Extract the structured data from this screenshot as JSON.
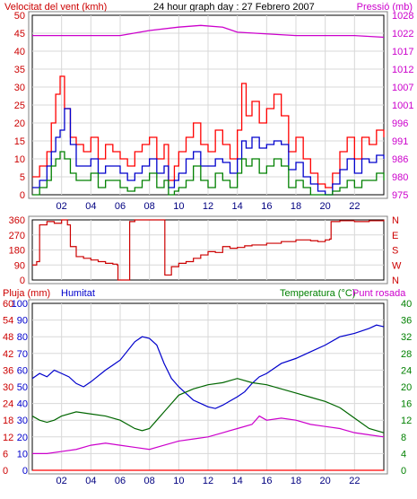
{
  "chart_data": [
    {
      "type": "line",
      "title": "24 hour graph day : 27 Febrero 2007",
      "ylabel": "Velocitat del vent (kmh)",
      "y2label": "Pressió (mb)",
      "ylim": [
        0,
        50
      ],
      "y2lim": [
        975,
        1028
      ],
      "x_ticks": [
        "02",
        "04",
        "06",
        "08",
        "10",
        "12",
        "14",
        "16",
        "18",
        "20",
        "22"
      ],
      "y_ticks": [
        "0",
        "5",
        "10",
        "15",
        "20",
        "25",
        "30",
        "35",
        "40",
        "45",
        "50"
      ],
      "y2_ticks": [
        "975",
        "980",
        "986",
        "991",
        "996",
        "1001",
        "1007",
        "1012",
        "1017",
        "1022",
        "1028"
      ],
      "grid": true,
      "series": [
        {
          "axis": "right",
          "color": "#cc00cc",
          "x": [
            0,
            2,
            4,
            6,
            8,
            10,
            11.5,
            13,
            14,
            16,
            18,
            20,
            22,
            24
          ],
          "values": [
            1022,
            1022,
            1022,
            1022,
            1023.5,
            1024.5,
            1025,
            1024.5,
            1023,
            1022.5,
            1022,
            1022,
            1022,
            1021.5
          ]
        },
        {
          "axis": "left",
          "color": "#ff0000",
          "x": [
            0,
            0.5,
            1,
            1.3,
            1.6,
            1.9,
            2.2,
            2.6,
            3,
            3.5,
            4,
            4.5,
            5,
            5.5,
            6,
            6.5,
            7,
            7.5,
            8,
            8.5,
            9,
            9.3,
            9.7,
            10,
            10.5,
            11,
            11.5,
            12,
            12.5,
            13,
            13.5,
            14,
            14.3,
            14.6,
            15,
            15.5,
            16,
            16.5,
            17,
            17.5,
            18,
            18.5,
            19,
            19.5,
            20,
            20.5,
            21,
            21.5,
            22,
            22.5,
            23,
            23.5,
            24
          ],
          "values": [
            5,
            8,
            12,
            20,
            28,
            33,
            24,
            16,
            14,
            12,
            16,
            10,
            14,
            12,
            10,
            8,
            12,
            14,
            16,
            10,
            14,
            4,
            8,
            12,
            16,
            20,
            14,
            12,
            18,
            14,
            10,
            18,
            31,
            22,
            26,
            20,
            24,
            28,
            22,
            12,
            16,
            10,
            6,
            3,
            2,
            6,
            12,
            16,
            10,
            16,
            14,
            18,
            16
          ]
        },
        {
          "axis": "left",
          "color": "#0000cc",
          "x": [
            0,
            0.5,
            1,
            1.3,
            1.6,
            1.9,
            2.2,
            2.6,
            3,
            3.5,
            4,
            4.5,
            5,
            5.5,
            6,
            6.5,
            7,
            7.5,
            8,
            8.5,
            9,
            9.3,
            9.7,
            10,
            10.5,
            11,
            11.5,
            12,
            12.5,
            13,
            13.5,
            14,
            14.3,
            14.6,
            15,
            15.5,
            16,
            16.5,
            17,
            17.5,
            18,
            18.5,
            19,
            19.5,
            20,
            20.5,
            21,
            21.5,
            22,
            22.5,
            23,
            23.5,
            24
          ],
          "values": [
            2,
            4,
            8,
            12,
            16,
            18,
            24,
            14,
            8,
            8,
            10,
            6,
            8,
            8,
            6,
            4,
            6,
            8,
            10,
            6,
            8,
            2,
            4,
            6,
            10,
            12,
            8,
            8,
            10,
            9,
            6,
            10,
            15,
            13,
            16,
            13,
            14,
            15,
            14,
            7,
            9,
            5,
            3,
            1,
            0,
            3,
            7,
            10,
            6,
            10,
            9,
            11,
            10
          ]
        },
        {
          "axis": "left",
          "color": "#008000",
          "x": [
            0,
            0.5,
            1,
            1.3,
            1.6,
            1.9,
            2.2,
            2.6,
            3,
            3.5,
            4,
            4.5,
            5,
            5.5,
            6,
            6.5,
            7,
            7.5,
            8,
            8.5,
            9,
            9.3,
            9.7,
            10,
            10.5,
            11,
            11.5,
            12,
            12.5,
            13,
            13.5,
            14,
            14.3,
            14.6,
            15,
            15.5,
            16,
            16.5,
            17,
            17.5,
            18,
            18.5,
            19,
            19.5,
            20,
            20.5,
            21,
            21.5,
            22,
            22.5,
            23,
            23.5,
            24
          ],
          "values": [
            0,
            2,
            4,
            8,
            10,
            12,
            10,
            6,
            4,
            4,
            6,
            2,
            4,
            4,
            2,
            1,
            2,
            4,
            6,
            2,
            4,
            0,
            1,
            2,
            4,
            8,
            4,
            2,
            6,
            4,
            2,
            6,
            10,
            8,
            10,
            6,
            8,
            10,
            8,
            2,
            4,
            2,
            0,
            0,
            0,
            1,
            2,
            4,
            2,
            4,
            4,
            6,
            4
          ]
        }
      ]
    },
    {
      "type": "line",
      "ylim": [
        0,
        360
      ],
      "y_ticks": [
        "0",
        "90",
        "180",
        "270",
        "360"
      ],
      "y2_ticks": [
        "N",
        "W",
        "S",
        "E",
        "N"
      ],
      "x_ticks": [
        "02",
        "04",
        "06",
        "08",
        "10",
        "12",
        "14",
        "16",
        "18",
        "20",
        "22"
      ],
      "grid": true,
      "series": [
        {
          "color": "#cc0000",
          "x": [
            0,
            0.3,
            0.5,
            1,
            1.5,
            2,
            2.4,
            2.6,
            3,
            3.5,
            4,
            4.5,
            5,
            5.5,
            5.8,
            5.85,
            6.6,
            6.65,
            7,
            7.5,
            8,
            8.5,
            9,
            9.05,
            9.5,
            10,
            10.5,
            11,
            11.5,
            12,
            12.5,
            13,
            13.5,
            14,
            14.5,
            15,
            16,
            17,
            18,
            19,
            19.5,
            20,
            20.3,
            20.4,
            21,
            22,
            23,
            24
          ],
          "values": [
            90,
            110,
            330,
            350,
            340,
            360,
            330,
            200,
            140,
            130,
            120,
            110,
            100,
            95,
            90,
            0,
            0,
            350,
            360,
            360,
            360,
            360,
            360,
            30,
            80,
            100,
            110,
            130,
            150,
            170,
            165,
            200,
            190,
            195,
            205,
            210,
            220,
            230,
            240,
            235,
            230,
            240,
            245,
            350,
            355,
            350,
            355,
            360
          ]
        }
      ]
    },
    {
      "type": "line",
      "y_label_left": "Pluja (mm)",
      "label_humidity": "Humitat",
      "y_label_right": "Temperatura (°C)",
      "label_dewpoint": "Punt rosada",
      "ylim_left": [
        0,
        100
      ],
      "ylim_right": [
        0,
        40
      ],
      "y_ticks_rain": [
        "0",
        "6",
        "12",
        "18",
        "24",
        "30",
        "36",
        "42",
        "48",
        "54",
        "60"
      ],
      "y_ticks_humidity": [
        "0",
        "10",
        "20",
        "30",
        "40",
        "50",
        "60",
        "70",
        "80",
        "90",
        "100"
      ],
      "y_ticks_temp": [
        "0",
        "4",
        "8",
        "12",
        "16",
        "20",
        "24",
        "28",
        "32",
        "36",
        "40"
      ],
      "x_ticks": [
        "02",
        "04",
        "06",
        "08",
        "10",
        "12",
        "14",
        "16",
        "18",
        "20",
        "22"
      ],
      "grid": true,
      "series": [
        {
          "name": "Humitat",
          "axis": "humidity",
          "color": "#0000cc",
          "x": [
            0,
            0.5,
            1,
            1.5,
            2,
            2.5,
            3,
            3.5,
            4,
            5,
            6,
            7,
            7.5,
            8,
            8.5,
            9,
            9.5,
            10,
            10.5,
            11,
            11.5,
            12,
            12.5,
            13,
            14,
            14.5,
            15,
            15.5,
            16,
            17,
            18,
            19,
            20,
            21,
            22,
            23,
            23.5,
            24
          ],
          "values": [
            55,
            58,
            56,
            60,
            58,
            56,
            52,
            50,
            53,
            60,
            66,
            77,
            80,
            79,
            75,
            64,
            55,
            50,
            46,
            42,
            40,
            38,
            37,
            39,
            44,
            47,
            52,
            56,
            58,
            64,
            67,
            71,
            75,
            80,
            82,
            85,
            87,
            86
          ]
        },
        {
          "name": "Temperatura",
          "axis": "temp",
          "color": "#006600",
          "x": [
            0,
            0.5,
            1,
            1.5,
            2,
            3,
            4,
            5,
            6,
            7,
            7.5,
            8,
            8.5,
            9,
            9.5,
            10,
            11,
            12,
            13,
            14,
            15,
            16,
            17,
            18,
            19,
            20,
            21,
            22,
            23,
            24
          ],
          "values": [
            13,
            12,
            11.5,
            12,
            13,
            14,
            13.5,
            13,
            12,
            10,
            9.5,
            10,
            12,
            14,
            16,
            18,
            19.5,
            20.5,
            21,
            22,
            21,
            20.5,
            19.5,
            18.5,
            17.5,
            16.5,
            15,
            12.5,
            10,
            9
          ]
        },
        {
          "name": "Punt rosada",
          "axis": "temp",
          "color": "#cc00cc",
          "x": [
            0,
            1,
            2,
            3,
            4,
            5,
            6,
            7,
            8,
            9,
            10,
            11,
            12,
            13,
            14,
            15,
            15.5,
            16,
            17,
            18,
            19,
            20,
            21,
            22,
            23,
            24
          ],
          "values": [
            4,
            4,
            4.5,
            5,
            6,
            6.5,
            6,
            5.5,
            5,
            6,
            7,
            7.5,
            8,
            9,
            10,
            11,
            13,
            12,
            12.5,
            12,
            11,
            10.5,
            10,
            9,
            8.5,
            8
          ]
        },
        {
          "name": "Pluja",
          "axis": "rain",
          "color": "#ff0000",
          "x": [
            0,
            24
          ],
          "values": [
            0,
            0
          ]
        }
      ]
    }
  ]
}
